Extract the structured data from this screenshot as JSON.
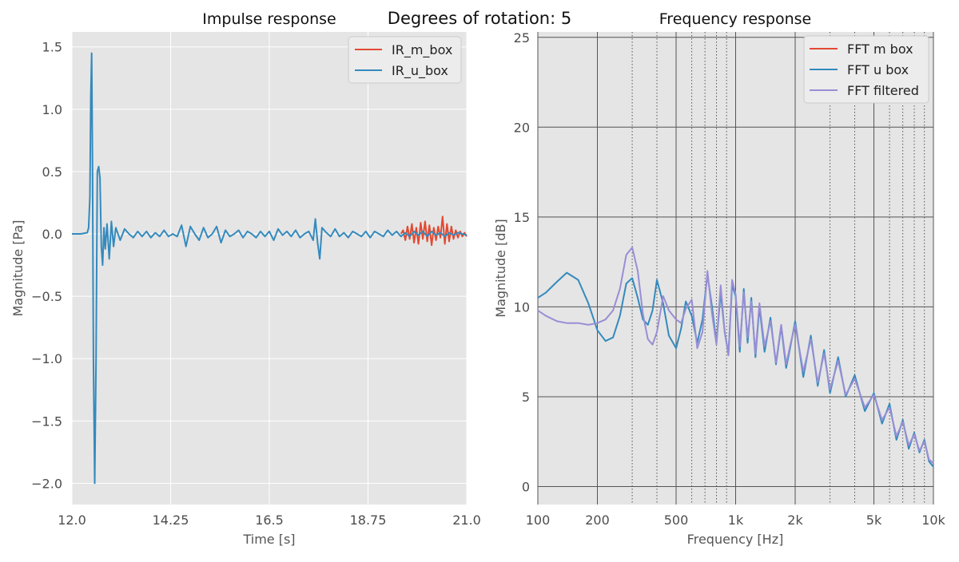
{
  "figure": {
    "suptitle": "Degrees of rotation: 5"
  },
  "colors": {
    "background": "#e5e5e5",
    "grid_left": "#ffffff",
    "grid_right": "#555555",
    "red": "#e24a33",
    "blue": "#348abd",
    "purple": "#988ed5"
  },
  "chart_data": [
    {
      "type": "line",
      "title": "Impulse response",
      "xlabel": "Time [s]",
      "ylabel": "Magnitude [Pa]",
      "xlim": [
        12.0,
        21.0
      ],
      "ylim": [
        -2.17,
        1.62
      ],
      "xticks": [
        12.0,
        14.25,
        16.5,
        18.75,
        21.0
      ],
      "xtick_labels": [
        "12.0",
        "14.25",
        "16.5",
        "18.75",
        "21.0"
      ],
      "yticks": [
        1.5,
        1.0,
        0.5,
        0.0,
        -0.5,
        -1.0,
        -1.5,
        -2.0
      ],
      "ytick_labels": [
        "1.5",
        "1.0",
        "0.5",
        "0.0",
        "−0.5",
        "−1.0",
        "−1.5",
        "−2.0"
      ],
      "legend_position": "top-right",
      "grid": true,
      "series": [
        {
          "name": "IR_m_box",
          "color_key": "red",
          "x": [
            19.5,
            19.55,
            19.6,
            19.65,
            19.7,
            19.75,
            19.8,
            19.85,
            19.9,
            19.95,
            20.0,
            20.05,
            20.1,
            20.15,
            20.2,
            20.25,
            20.3,
            20.35,
            20.4,
            20.45,
            20.5,
            20.55,
            20.6,
            20.65,
            20.7,
            20.75,
            20.8,
            20.85,
            20.9,
            20.95,
            21.0
          ],
          "y": [
            0.0,
            0.03,
            -0.05,
            0.06,
            -0.04,
            0.08,
            -0.07,
            0.05,
            -0.08,
            0.09,
            -0.04,
            0.1,
            -0.06,
            0.07,
            -0.09,
            0.05,
            -0.05,
            0.06,
            -0.03,
            0.14,
            -0.08,
            0.08,
            -0.06,
            0.06,
            -0.04,
            0.03,
            -0.03,
            0.02,
            -0.02,
            0.01,
            -0.02
          ]
        },
        {
          "name": "IR_u_box",
          "color_key": "blue",
          "x": [
            12.0,
            12.2,
            12.35,
            12.38,
            12.41,
            12.43,
            12.45,
            12.47,
            12.49,
            12.52,
            12.55,
            12.58,
            12.61,
            12.64,
            12.67,
            12.7,
            12.73,
            12.76,
            12.8,
            12.85,
            12.9,
            12.95,
            13.0,
            13.1,
            13.2,
            13.3,
            13.4,
            13.5,
            13.6,
            13.7,
            13.8,
            13.9,
            14.0,
            14.1,
            14.2,
            14.3,
            14.4,
            14.5,
            14.6,
            14.7,
            14.8,
            14.9,
            15.0,
            15.1,
            15.2,
            15.3,
            15.4,
            15.5,
            15.6,
            15.7,
            15.8,
            15.9,
            16.0,
            16.1,
            16.2,
            16.3,
            16.4,
            16.5,
            16.6,
            16.7,
            16.8,
            16.9,
            17.0,
            17.1,
            17.2,
            17.3,
            17.4,
            17.5,
            17.55,
            17.6,
            17.65,
            17.7,
            17.8,
            17.9,
            18.0,
            18.1,
            18.2,
            18.3,
            18.4,
            18.5,
            18.6,
            18.7,
            18.8,
            18.9,
            19.0,
            19.1,
            19.2,
            19.3,
            19.4,
            19.5,
            19.6,
            19.7,
            19.8,
            19.9,
            20.0,
            20.1,
            20.2,
            20.3,
            20.4,
            20.5,
            20.6,
            20.7,
            20.8,
            20.9,
            21.0
          ],
          "y": [
            0.0,
            0.0,
            0.01,
            0.05,
            0.3,
            1.1,
            1.45,
            0.5,
            -1.0,
            -2.0,
            -1.0,
            0.5,
            0.54,
            0.45,
            -0.1,
            -0.25,
            0.05,
            -0.12,
            0.08,
            -0.2,
            0.1,
            -0.1,
            0.05,
            -0.05,
            0.04,
            0.0,
            -0.03,
            0.02,
            -0.02,
            0.02,
            -0.03,
            0.01,
            -0.02,
            0.03,
            -0.02,
            0.0,
            -0.02,
            0.07,
            -0.1,
            0.06,
            0.0,
            -0.05,
            0.05,
            -0.03,
            0.0,
            0.06,
            -0.07,
            0.03,
            -0.02,
            0.0,
            0.03,
            -0.03,
            0.02,
            0.0,
            -0.03,
            0.02,
            -0.02,
            0.02,
            -0.05,
            0.04,
            -0.01,
            0.02,
            -0.02,
            0.03,
            -0.03,
            0.0,
            0.02,
            -0.05,
            0.12,
            -0.07,
            -0.2,
            0.05,
            0.01,
            -0.02,
            0.04,
            -0.02,
            0.01,
            -0.03,
            0.02,
            0.0,
            -0.02,
            0.02,
            -0.03,
            0.02,
            0.0,
            -0.02,
            0.03,
            -0.01,
            0.02,
            -0.02,
            0.01,
            -0.02,
            0.02,
            -0.01,
            0.02,
            -0.02,
            0.02,
            -0.01,
            0.01,
            -0.02,
            0.01,
            -0.01,
            0.01,
            0.0,
            -0.01
          ]
        }
      ]
    },
    {
      "type": "line",
      "title": "Frequency response",
      "xlabel": "Frequency [Hz]",
      "ylabel": "Magnitude [dB]",
      "xscale": "log",
      "xlim": [
        100,
        10000
      ],
      "ylim": [
        -1.0,
        25.3
      ],
      "xticks_major": [
        100,
        200,
        500,
        1000,
        2000,
        5000,
        10000
      ],
      "xtick_labels": [
        "100",
        "200",
        "500",
        "1k",
        "2k",
        "5k",
        "10k"
      ],
      "xticks_minor": [
        300,
        400,
        600,
        700,
        800,
        900,
        3000,
        4000,
        6000,
        7000,
        8000,
        9000
      ],
      "yticks": [
        0,
        5,
        10,
        15,
        20,
        25
      ],
      "ytick_labels": [
        "0",
        "5",
        "10",
        "15",
        "20",
        "25"
      ],
      "legend_position": "top-right",
      "grid": true,
      "series": [
        {
          "name": "FFT m box",
          "color_key": "red",
          "x": [],
          "y": []
        },
        {
          "name": "FFT u box",
          "color_key": "blue",
          "x": [
            100,
            110,
            125,
            140,
            160,
            180,
            200,
            220,
            240,
            260,
            280,
            300,
            320,
            340,
            360,
            380,
            400,
            430,
            460,
            500,
            530,
            560,
            600,
            640,
            680,
            720,
            760,
            800,
            840,
            880,
            920,
            960,
            1000,
            1050,
            1100,
            1150,
            1200,
            1260,
            1320,
            1400,
            1500,
            1600,
            1700,
            1800,
            1900,
            2000,
            2200,
            2400,
            2600,
            2800,
            3000,
            3300,
            3600,
            4000,
            4500,
            5000,
            5500,
            6000,
            6500,
            7000,
            7500,
            8000,
            8500,
            9000,
            9500,
            10000
          ],
          "y": [
            10.5,
            10.8,
            11.4,
            11.9,
            11.5,
            10.2,
            8.7,
            8.1,
            8.3,
            9.5,
            11.3,
            11.6,
            10.5,
            9.3,
            9.0,
            9.8,
            11.5,
            10.2,
            8.4,
            7.7,
            8.8,
            10.3,
            9.5,
            8.0,
            9.3,
            11.8,
            10.0,
            8.0,
            10.8,
            8.6,
            7.4,
            11.2,
            10.6,
            7.5,
            11.0,
            8.0,
            10.5,
            7.2,
            10.0,
            7.5,
            9.4,
            6.8,
            8.9,
            6.6,
            7.9,
            9.2,
            6.1,
            8.4,
            5.6,
            7.6,
            5.2,
            7.2,
            5.0,
            6.2,
            4.2,
            5.2,
            3.5,
            4.6,
            2.6,
            3.7,
            2.1,
            3.0,
            1.9,
            2.6,
            1.4,
            1.1
          ]
        },
        {
          "name": "FFT filtered",
          "color_key": "purple",
          "x": [
            100,
            110,
            125,
            140,
            160,
            180,
            200,
            220,
            240,
            260,
            280,
            300,
            320,
            340,
            360,
            380,
            400,
            430,
            460,
            500,
            530,
            560,
            600,
            640,
            680,
            720,
            760,
            800,
            840,
            880,
            920,
            960,
            1000,
            1050,
            1100,
            1150,
            1200,
            1260,
            1320,
            1400,
            1500,
            1600,
            1700,
            1800,
            1900,
            2000,
            2200,
            2400,
            2600,
            2800,
            3000,
            3300,
            3600,
            4000,
            4500,
            5000,
            5500,
            6000,
            6500,
            7000,
            7500,
            8000,
            8500,
            9000,
            9500,
            10000
          ],
          "y": [
            9.8,
            9.5,
            9.2,
            9.1,
            9.1,
            9.0,
            9.1,
            9.3,
            9.8,
            11.0,
            12.9,
            13.3,
            12.0,
            9.6,
            8.2,
            7.9,
            8.6,
            10.6,
            9.8,
            9.3,
            9.1,
            9.9,
            10.4,
            7.7,
            8.6,
            12.0,
            9.6,
            7.9,
            11.2,
            8.6,
            7.3,
            11.5,
            10.7,
            7.8,
            10.8,
            8.3,
            10.3,
            7.4,
            10.2,
            7.8,
            9.2,
            6.9,
            9.0,
            6.8,
            8.0,
            9.0,
            6.4,
            8.2,
            5.8,
            7.4,
            5.4,
            7.0,
            5.1,
            6.0,
            4.4,
            5.1,
            3.7,
            4.4,
            2.8,
            3.6,
            2.3,
            2.9,
            2.0,
            2.5,
            1.5,
            1.3
          ]
        }
      ]
    }
  ]
}
